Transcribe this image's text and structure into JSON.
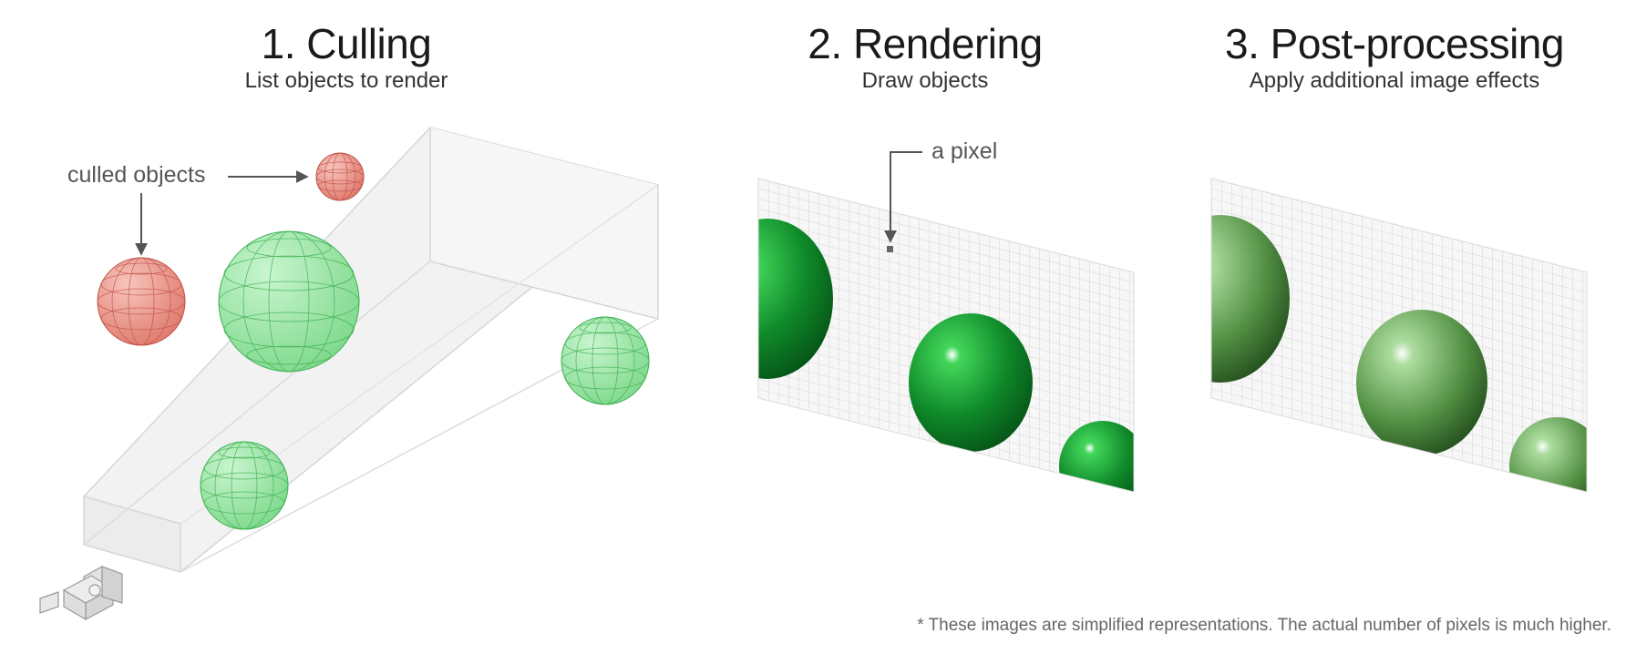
{
  "steps": [
    {
      "title": "1. Culling",
      "subtitle": "List objects to render"
    },
    {
      "title": "2. Rendering",
      "subtitle": "Draw objects"
    },
    {
      "title": "3. Post-processing",
      "subtitle": "Apply additional image effects"
    }
  ],
  "annotations": {
    "culled_objects": "culled objects",
    "a_pixel": "a pixel"
  },
  "footnote": "* These images are simplified representations. The actual number of pixels is much higher.",
  "colors": {
    "visible_sphere": "#8ee29a",
    "culled_sphere": "#e8847a",
    "rendered_green": "#1a9e35",
    "dark_green": "#0a5c1c",
    "grid": "#d8d8d8",
    "frustum": "#e0e0e0",
    "arrow": "#555555"
  },
  "icons": [
    "camera-icon",
    "arrow-icon"
  ]
}
